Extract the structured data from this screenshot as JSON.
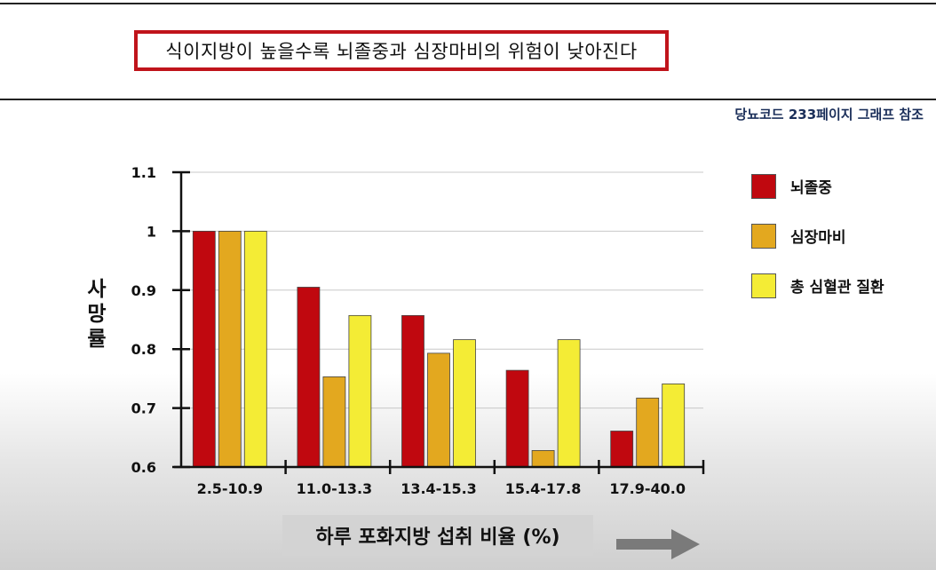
{
  "header": {
    "headline": "식이지방이 높을수록 뇌졸중과 심장마비의 위험이 낮아진다",
    "source": "당뇨코드 233페이지 그래프 참조"
  },
  "colors": {
    "headline_border": "#c0141b",
    "source_text": "#1b2f5a"
  },
  "chart_data": {
    "type": "bar",
    "categories": [
      "2.5-10.9",
      "11.0-13.3",
      "13.4-15.3",
      "15.4-17.8",
      "17.9-40.0"
    ],
    "series": [
      {
        "name": "뇌졸중",
        "color": "#c0080f",
        "values": [
          1.0,
          0.905,
          0.857,
          0.764,
          0.661
        ]
      },
      {
        "name": "심장마비",
        "color": "#e3a81f",
        "values": [
          1.0,
          0.753,
          0.793,
          0.628,
          0.717
        ]
      },
      {
        "name": "총 심혈관 질환",
        "color": "#f4ec35",
        "values": [
          1.0,
          0.857,
          0.816,
          0.816,
          0.741
        ]
      }
    ],
    "ylim": [
      0.6,
      1.1
    ],
    "yticks": [
      "0.6",
      "0.7",
      "0.8",
      "0.9",
      "1",
      "1.1"
    ],
    "ylabel": "사망률",
    "xlabel": "하루 포화지방 섭취 비율 (%)",
    "grid": true,
    "legend_position": "right"
  }
}
